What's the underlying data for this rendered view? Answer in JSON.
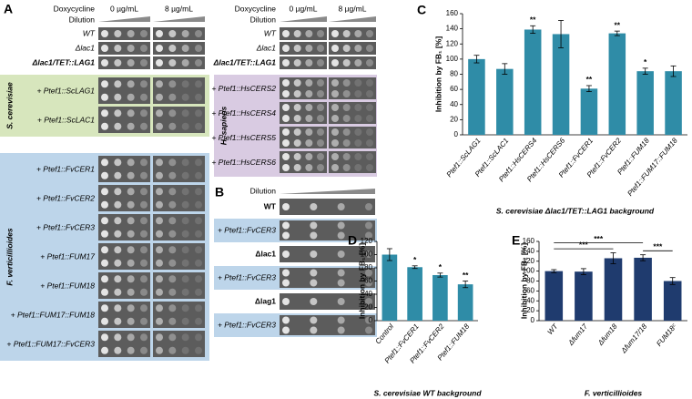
{
  "panel_a": {
    "label": "A",
    "left": {
      "doxycycline": "Doxycycline",
      "dose_0": "0 µg/mL",
      "dose_8": "8 µg/mL",
      "dilution": "Dilution",
      "controls": [
        "WT",
        "Δlac1",
        "Δlac1/TET::LAG1"
      ],
      "groups": [
        {
          "organism": "S. cerevisiae",
          "color": "#d7e6bd",
          "rows": [
            "+ Ptef1::ScLAG1",
            "+ Ptef1::ScLAC1"
          ]
        },
        {
          "organism": "F. verticillioides",
          "color": "#bdd5ea",
          "rows": [
            "+ Ptef1::FvCER1",
            "+ Ptef1::FvCER2",
            "+ Ptef1::FvCER3",
            "+ Ptef1::FUM17",
            "+ Ptef1::FUM18",
            "+ Ptef1::FUM17::FUM18",
            "+ Ptef1::FUM17::FvCER3"
          ]
        }
      ]
    },
    "right": {
      "doxycycline": "Doxycycline",
      "dose_0": "0 µg/mL",
      "dose_8": "8 µg/mL",
      "dilution": "Dilution",
      "controls": [
        "WT",
        "Δlac1",
        "Δlac1/TET::LAG1"
      ],
      "groups": [
        {
          "organism": "H. sapiens",
          "color": "#d9cbe2",
          "rows": [
            "+ Ptef1::HsCERS2",
            "+ Ptef1::HsCERS4",
            "+ Ptef1::HsCERS5",
            "+ Ptef1::HsCERS6"
          ]
        }
      ]
    }
  },
  "panel_b": {
    "label": "B",
    "dilution": "Dilution",
    "color": "#bdd5ea",
    "strains": [
      {
        "name": "WT",
        "rows": [
          "+ Ptef1::FvCER3"
        ]
      },
      {
        "name": "Δlac1",
        "rows": [
          "+ Ptef1::FvCER3"
        ]
      },
      {
        "name": "Δlag1",
        "rows": [
          "+ Ptef1::FvCER3"
        ]
      }
    ]
  },
  "chart_data": [
    {
      "panel": "C",
      "type": "bar",
      "ylabel": "Inhibition by FB₁ [%]",
      "xlabel": "S. cerevisiae Δlac1/TET::LAG1 background",
      "categories": [
        "Ptef1::ScLAG1",
        "Ptef1::ScLAC1",
        "Ptef1::HsCERS4",
        "Ptef1::HsCERS6",
        "Ptef1::FvCER1",
        "Ptef1::FvCER2",
        "Ptef1::FUM18",
        "Ptef1::FUM17::FUM18"
      ],
      "values": [
        100,
        87,
        139,
        133,
        61,
        134,
        84,
        84
      ],
      "errors": [
        5,
        7,
        5,
        18,
        4,
        3,
        4,
        7
      ],
      "annotations": [
        null,
        null,
        "**",
        null,
        "**",
        "**",
        "*",
        null
      ],
      "color": "#2f8ca7",
      "ylim": [
        0,
        160
      ],
      "yticks": [
        0,
        20,
        40,
        60,
        80,
        100,
        120,
        140,
        160
      ]
    },
    {
      "panel": "D",
      "type": "bar",
      "ylabel": "Inhibition by FB₁ [%]",
      "xlabel": "S. cerevisiae WT background",
      "categories": [
        "Control",
        "Ptef1::FvCER1",
        "Ptef1::FvCER2",
        "Ptef1::FUM18"
      ],
      "values": [
        100,
        81,
        69,
        55
      ],
      "errors": [
        9,
        2,
        3,
        5
      ],
      "annotations": [
        null,
        "*",
        "*",
        "**"
      ],
      "color": "#2f8ca7",
      "ylim": [
        0,
        120
      ],
      "yticks": [
        0,
        20,
        40,
        60,
        80,
        100,
        120
      ]
    },
    {
      "panel": "E",
      "type": "bar",
      "ylabel": "Inhibition by FB₁ [%]",
      "xlabel": "F. verticillioides",
      "categories": [
        "WT",
        "Δfum17",
        "Δfum18",
        "Δfum17/18",
        "FUM18ᶜ"
      ],
      "values": [
        100,
        99,
        126,
        127,
        80
      ],
      "errors": [
        3,
        6,
        11,
        6,
        7
      ],
      "brackets": [
        {
          "from": 0,
          "to": 2,
          "label": "***"
        },
        {
          "from": 3,
          "to": 4,
          "label": "***"
        },
        {
          "from": 0,
          "to": 3,
          "label": "***"
        }
      ],
      "color": "#1f3b6e",
      "ylim": [
        0,
        160
      ],
      "yticks": [
        0,
        20,
        40,
        60,
        80,
        100,
        120,
        140,
        160
      ]
    }
  ]
}
